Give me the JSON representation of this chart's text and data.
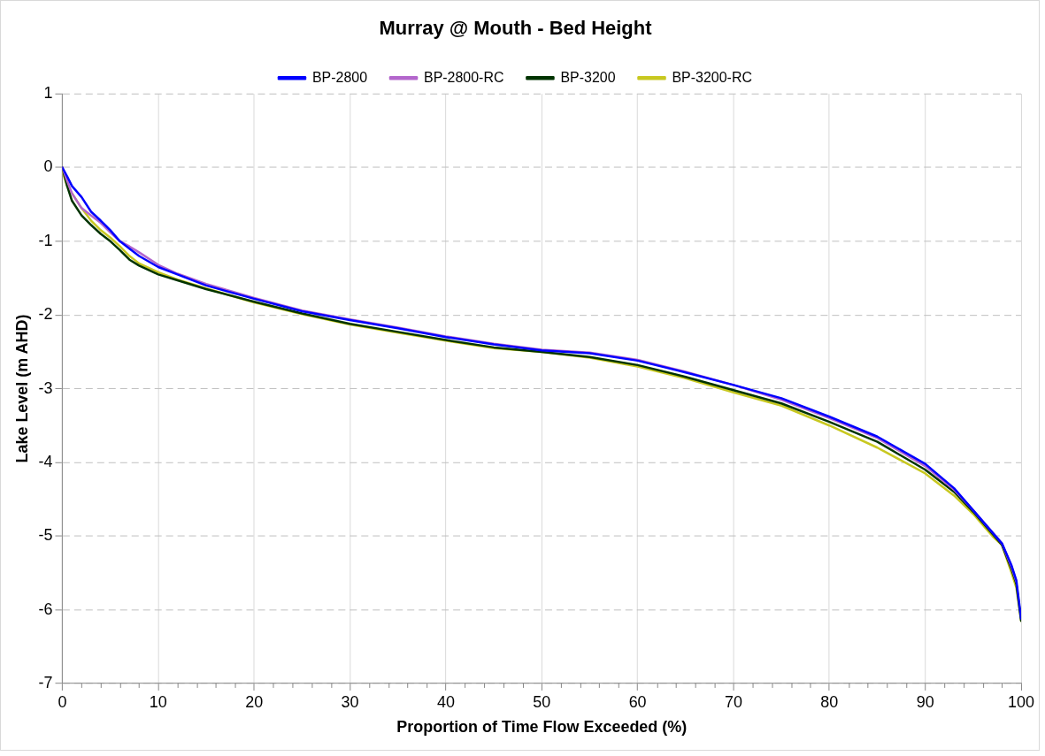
{
  "chart_data": {
    "type": "line",
    "title": "Murray @ Mouth - Bed Height",
    "xlabel": "Proportion of Time Flow Exceeded (%)",
    "ylabel": "Lake Level (m AHD)",
    "x": [
      0,
      0.5,
      1,
      2,
      3,
      4,
      5,
      6,
      7,
      8,
      10,
      12,
      15,
      20,
      25,
      30,
      35,
      40,
      45,
      50,
      55,
      60,
      65,
      70,
      75,
      80,
      85,
      90,
      93,
      95,
      97,
      98,
      99,
      99.5,
      100
    ],
    "series": [
      {
        "name": "BP-2800",
        "color": "#0000ff",
        "values": [
          0,
          -0.12,
          -0.25,
          -0.4,
          -0.6,
          -0.72,
          -0.85,
          -1.0,
          -1.1,
          -1.2,
          -1.35,
          -1.45,
          -1.6,
          -1.78,
          -1.95,
          -2.07,
          -2.18,
          -2.3,
          -2.4,
          -2.48,
          -2.52,
          -2.62,
          -2.78,
          -2.95,
          -3.13,
          -3.38,
          -3.65,
          -4.02,
          -4.35,
          -4.65,
          -4.95,
          -5.1,
          -5.4,
          -5.6,
          -6.12
        ]
      },
      {
        "name": "BP-2800-RC",
        "color": "#b366cc",
        "values": [
          0,
          -0.18,
          -0.35,
          -0.55,
          -0.65,
          -0.75,
          -0.88,
          -1.0,
          -1.07,
          -1.15,
          -1.32,
          -1.44,
          -1.58,
          -1.77,
          -1.94,
          -2.06,
          -2.17,
          -2.29,
          -2.39,
          -2.47,
          -2.51,
          -2.61,
          -2.77,
          -2.95,
          -3.15,
          -3.4,
          -3.67,
          -4.05,
          -4.37,
          -4.65,
          -4.95,
          -5.1,
          -5.42,
          -5.62,
          null
        ]
      },
      {
        "name": "BP-3200",
        "color": "#003300",
        "values": [
          0,
          -0.25,
          -0.45,
          -0.65,
          -0.78,
          -0.9,
          -1.0,
          -1.12,
          -1.25,
          -1.33,
          -1.45,
          -1.53,
          -1.65,
          -1.82,
          -1.98,
          -2.12,
          -2.23,
          -2.34,
          -2.44,
          -2.5,
          -2.57,
          -2.68,
          -2.84,
          -3.02,
          -3.2,
          -3.45,
          -3.72,
          -4.1,
          -4.4,
          -4.67,
          -4.97,
          -5.12,
          -5.45,
          -5.65,
          -6.15
        ]
      },
      {
        "name": "BP-3200-RC",
        "color": "#c8c820",
        "values": [
          -0.05,
          -0.25,
          -0.35,
          -0.55,
          -0.72,
          -0.85,
          -0.95,
          -1.07,
          -1.2,
          -1.3,
          -1.42,
          -1.52,
          -1.64,
          -1.83,
          -1.99,
          -2.13,
          -2.24,
          -2.35,
          -2.45,
          -2.5,
          -2.58,
          -2.7,
          -2.86,
          -3.05,
          -3.23,
          -3.5,
          -3.8,
          -4.15,
          -4.45,
          -4.7,
          -5.0,
          -5.12,
          -5.5,
          -5.7,
          -6.15
        ]
      }
    ],
    "xlim": [
      0,
      100
    ],
    "xticks": [
      0,
      10,
      20,
      30,
      40,
      50,
      60,
      70,
      80,
      90,
      100
    ],
    "ylim": [
      -7,
      1
    ],
    "yticks": [
      -7,
      -6,
      -5,
      -4,
      -3,
      -2,
      -1,
      0,
      1
    ],
    "grid": true,
    "legend": "top",
    "marker": "none",
    "line_style": "solid"
  }
}
